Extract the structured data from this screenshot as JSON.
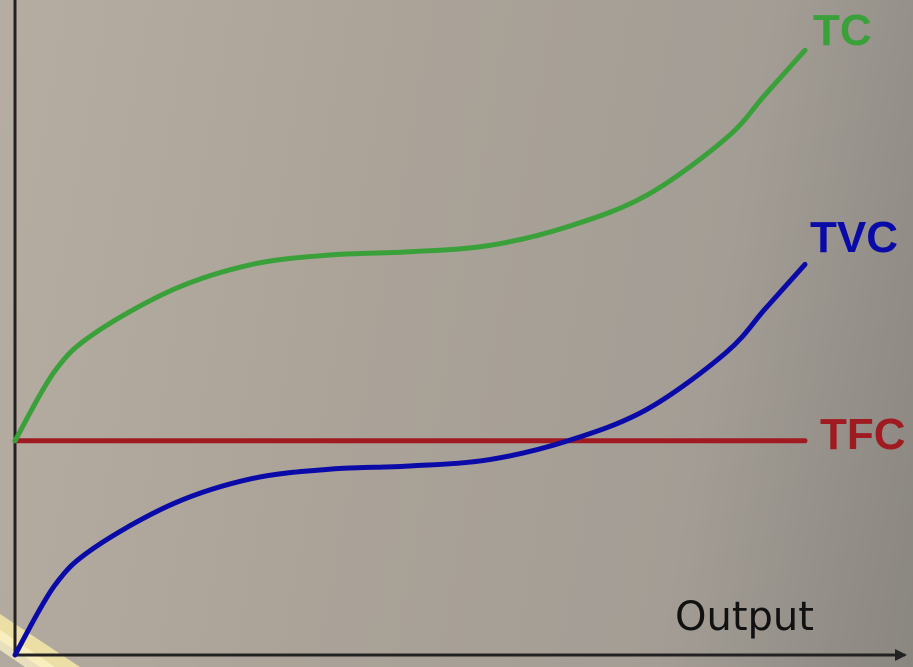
{
  "chart_data": {
    "type": "line",
    "title": "",
    "xlabel": "Output",
    "ylabel": "",
    "xlim": [
      0,
      10
    ],
    "ylim": [
      0,
      10
    ],
    "grid": false,
    "legend": "none",
    "series": [
      {
        "name": "TC",
        "color": "#3aa03a",
        "x": [
          0,
          0.5,
          1,
          2,
          3,
          4,
          5,
          6,
          7,
          8,
          9,
          9.5,
          10
        ],
        "y": [
          3.4,
          4.5,
          5.1,
          5.8,
          6.2,
          6.35,
          6.4,
          6.5,
          6.8,
          7.3,
          8.2,
          8.9,
          9.6
        ]
      },
      {
        "name": "TVC",
        "color": "#0a0aa8",
        "x": [
          0,
          0.5,
          1,
          2,
          3,
          4,
          5,
          6,
          7,
          8,
          9,
          9.5,
          10
        ],
        "y": [
          0,
          1.1,
          1.7,
          2.4,
          2.8,
          2.95,
          3.0,
          3.1,
          3.4,
          3.9,
          4.8,
          5.5,
          6.2
        ]
      },
      {
        "name": "TFC",
        "color": "#a01a22",
        "x": [
          0,
          10
        ],
        "y": [
          3.4,
          3.4
        ]
      }
    ]
  },
  "ui": {
    "axis_color": "#222222",
    "accent_color": "#f2e4a6"
  }
}
